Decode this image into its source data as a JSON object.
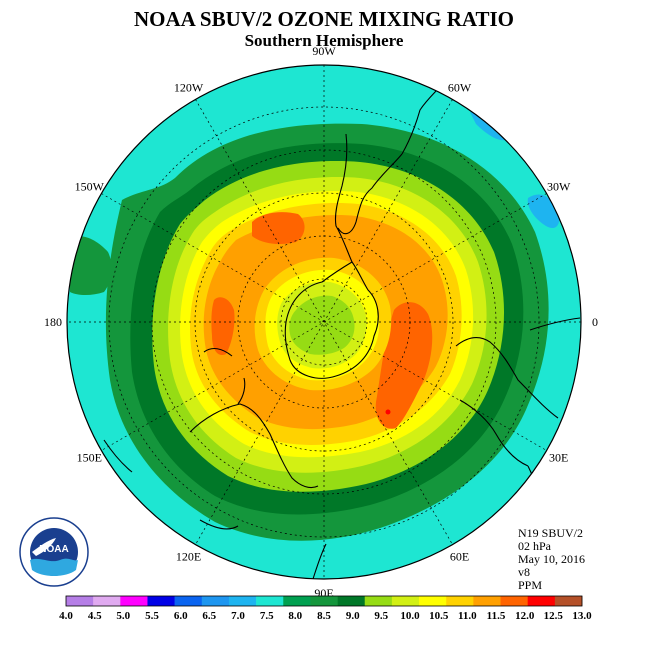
{
  "title": "NOAA SBUV/2 OZONE MIXING RATIO",
  "subtitle": "Southern Hemisphere",
  "longitude_labels": [
    {
      "text": "90W",
      "deg": 90
    },
    {
      "text": "60W",
      "deg": 60
    },
    {
      "text": "30W",
      "deg": 30
    },
    {
      "text": "0",
      "deg": 0
    },
    {
      "text": "30E",
      "deg": -30
    },
    {
      "text": "60E",
      "deg": -60
    },
    {
      "text": "90E",
      "deg": -90
    },
    {
      "text": "120E",
      "deg": -120
    },
    {
      "text": "150E",
      "deg": -150
    },
    {
      "text": "180",
      "deg": 180
    },
    {
      "text": "150W",
      "deg": 150
    },
    {
      "text": "120W",
      "deg": 120
    }
  ],
  "info": {
    "satellite": "N19 SBUV/2",
    "level": "02 hPa",
    "date": "May 10, 2016",
    "version": "v8",
    "units": "PPM"
  },
  "logo": {
    "text": "NOAA"
  },
  "colorbar": {
    "ticks": [
      "4.0",
      "4.5",
      "5.0",
      "5.5",
      "6.0",
      "6.5",
      "7.0",
      "7.5",
      "8.0",
      "8.5",
      "9.0",
      "9.5",
      "10.0",
      "10.5",
      "11.0",
      "11.5",
      "12.0",
      "12.5",
      "13.0"
    ],
    "colors": [
      "#b57ee6",
      "#e0aaf0",
      "#ff00ff",
      "#0000e6",
      "#0a64f0",
      "#1e96f0",
      "#1eb4f0",
      "#1ee6d2",
      "#00a050",
      "#14963c",
      "#007828",
      "#96dc14",
      "#d2f014",
      "#ffff00",
      "#ffd200",
      "#ffa000",
      "#ff6400",
      "#ff0000",
      "#b45028"
    ]
  },
  "map_colors": {
    "outer": "#1ee6d2",
    "level_8_5": "#14963c",
    "level_9_0": "#007828",
    "level_9_5": "#96dc14",
    "level_10_0": "#d2f014",
    "level_10_5": "#ffff00",
    "level_11_0": "#ffd200",
    "level_11_5": "#ffa000",
    "level_12_0": "#ff6400",
    "low_patch": "#1eb4f0"
  }
}
